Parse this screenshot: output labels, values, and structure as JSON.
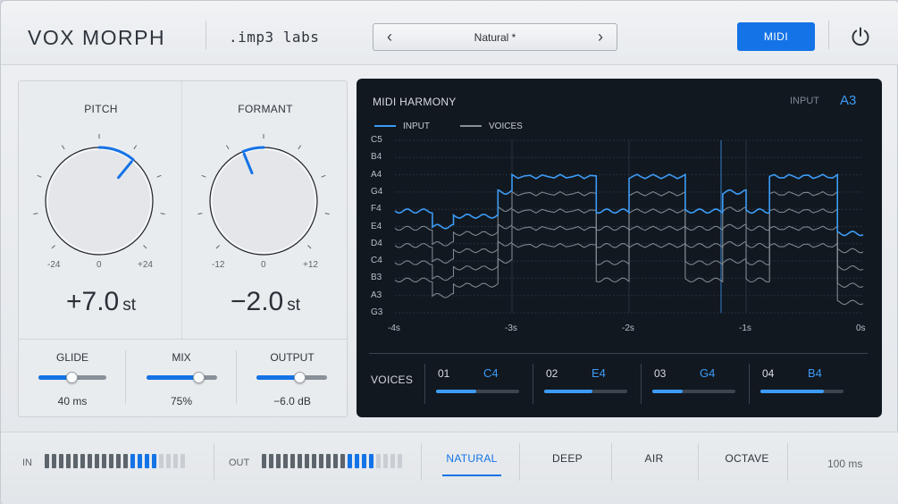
{
  "header": {
    "brand": "VOX MORPH",
    "maker": ".imp3 labs",
    "preset_name": "Natural *",
    "prev_glyph": "‹",
    "next_glyph": "›",
    "midi_label": "MIDI",
    "power_icon": "power-icon",
    "accent": "#1473e6"
  },
  "knobs": {
    "pitch": {
      "label": "PITCH",
      "min_label": "-24",
      "mid_label": "0",
      "max_label": "+24",
      "value": "+7.0",
      "unit": "st",
      "value_num": 7.0,
      "range": [
        -24,
        24
      ]
    },
    "formant": {
      "label": "FORMANT",
      "min_label": "-12",
      "mid_label": "0",
      "max_label": "+12",
      "value": "−2.0",
      "unit": "st",
      "value_num": -2.0,
      "range": [
        -12,
        12
      ]
    }
  },
  "sliders": {
    "glide": {
      "label": "GLIDE",
      "value": "40 ms",
      "level": 0.5
    },
    "mix": {
      "label": "MIX",
      "value": "75%",
      "level": 0.75
    },
    "output": {
      "label": "OUTPUT",
      "value": "−6.0 dB",
      "level": 0.62
    }
  },
  "harmony": {
    "title": "MIDI HARMONY",
    "input_label": "INPUT",
    "input_note": "A3",
    "legend_input": "INPUT",
    "legend_voices": "VOICES",
    "note_labels": [
      "C5",
      "B4",
      "A4",
      "G4",
      "F4",
      "E4",
      "D4",
      "C4",
      "B3",
      "A3",
      "G3"
    ],
    "time_labels": [
      "-4s",
      "-3s",
      "-2s",
      "-1s",
      "0s"
    ],
    "input_color": "#3d9bf5",
    "voice_color": "#8a9199",
    "voices_label": "VOICES",
    "voices": [
      {
        "num": "01",
        "note": "C4",
        "level": 0.48
      },
      {
        "num": "02",
        "note": "E4",
        "level": 0.58
      },
      {
        "num": "03",
        "note": "G4",
        "level": 0.37
      },
      {
        "num": "04",
        "note": "B4",
        "level": 0.76
      }
    ]
  },
  "footer": {
    "in_label": "IN",
    "out_label": "OUT",
    "in_level": 0.8,
    "out_level": 0.8,
    "tabs": [
      "NATURAL",
      "DEEP",
      "AIR",
      "OCTAVE"
    ],
    "active_tab": "NATURAL",
    "latency": "100 ms"
  }
}
